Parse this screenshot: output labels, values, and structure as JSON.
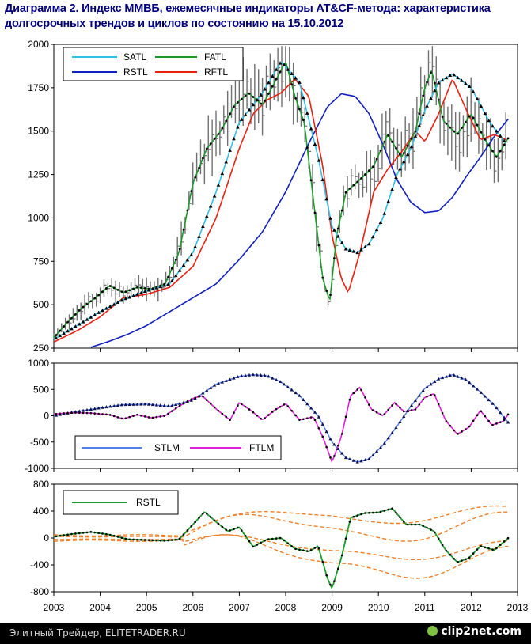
{
  "title": "Диаграмма 2. Индекс ММВБ, ежемесячные индикаторы AT&CF-метода: характеристика долгосрочных трендов и циклов по состоянию на 15.10.2012",
  "footer": {
    "source": "Элитный Трейдер, ELITETRADER.RU",
    "brand": "clip2net.com"
  },
  "colors": {
    "satl": "#30c0e8",
    "fatl": "#1a9a2a",
    "rstl": "#1020c0",
    "rftl": "#e82010",
    "stlm": "#5080e8",
    "ftlm": "#e020d8",
    "bands": "#f08028"
  },
  "chart_data": [
    {
      "type": "line",
      "x_ticks": [
        2003,
        2004,
        2005,
        2006,
        2007,
        2008,
        2009,
        2010,
        2011,
        2012,
        2013
      ],
      "ylim": [
        250,
        2000
      ],
      "y_ticks": [
        250,
        500,
        750,
        1000,
        1250,
        1500,
        1750,
        2000
      ],
      "legend": {
        "position": "top-left",
        "entries": [
          "SATL",
          "FATL",
          "RSTL",
          "RFTL"
        ]
      },
      "series": [
        {
          "name": "SATL",
          "x": [
            2003.0,
            2003.5,
            2004.0,
            2004.5,
            2005.0,
            2005.5,
            2006.0,
            2006.5,
            2007.0,
            2007.5,
            2007.9,
            2008.3,
            2008.7,
            2009.0,
            2009.3,
            2009.55,
            2009.8,
            2010.1,
            2010.4,
            2010.7,
            2011.0,
            2011.3,
            2011.6,
            2012.0,
            2012.4,
            2012.75
          ],
          "y": [
            300,
            380,
            460,
            530,
            580,
            620,
            800,
            1150,
            1550,
            1720,
            1900,
            1780,
            1350,
            950,
            820,
            800,
            850,
            1000,
            1250,
            1400,
            1620,
            1780,
            1830,
            1750,
            1550,
            1430
          ]
        },
        {
          "name": "FATL",
          "x": [
            2003.0,
            2003.3,
            2003.6,
            2003.9,
            2004.2,
            2004.5,
            2004.8,
            2005.1,
            2005.4,
            2005.7,
            2006.0,
            2006.3,
            2006.6,
            2006.9,
            2007.2,
            2007.5,
            2007.8,
            2008.0,
            2008.2,
            2008.4,
            2008.6,
            2008.8,
            2008.95,
            2009.1,
            2009.3,
            2009.6,
            2009.9,
            2010.2,
            2010.5,
            2010.8,
            2011.0,
            2011.15,
            2011.4,
            2011.7,
            2012.0,
            2012.3,
            2012.55,
            2012.8
          ],
          "y": [
            310,
            400,
            480,
            540,
            610,
            570,
            600,
            590,
            620,
            800,
            1200,
            1400,
            1500,
            1650,
            1720,
            1650,
            1800,
            1900,
            1700,
            1550,
            1100,
            650,
            520,
            900,
            1150,
            1220,
            1300,
            1480,
            1350,
            1500,
            1750,
            1850,
            1560,
            1480,
            1600,
            1450,
            1350,
            1460
          ]
        },
        {
          "name": "RSTL",
          "x": [
            2003.8,
            2004.2,
            2004.6,
            2005.0,
            2005.5,
            2006.0,
            2006.5,
            2007.0,
            2007.5,
            2008.0,
            2008.5,
            2008.9,
            2009.2,
            2009.5,
            2009.8,
            2010.1,
            2010.4,
            2010.7,
            2011.0,
            2011.3,
            2011.6,
            2011.9,
            2012.2,
            2012.5,
            2012.8
          ],
          "y": [
            255,
            290,
            330,
            380,
            460,
            540,
            620,
            760,
            920,
            1150,
            1430,
            1640,
            1715,
            1700,
            1600,
            1420,
            1220,
            1090,
            1030,
            1040,
            1120,
            1240,
            1350,
            1470,
            1570
          ]
        },
        {
          "name": "RFTL",
          "x": [
            2003.0,
            2003.5,
            2004.0,
            2004.5,
            2005.0,
            2005.5,
            2006.0,
            2006.5,
            2007.0,
            2007.3,
            2007.6,
            2007.9,
            2008.2,
            2008.5,
            2008.8,
            2009.0,
            2009.2,
            2009.35,
            2009.6,
            2009.9,
            2010.2,
            2010.5,
            2010.8,
            2011.0,
            2011.3,
            2011.6,
            2011.9,
            2012.2,
            2012.5,
            2012.75
          ],
          "y": [
            285,
            350,
            430,
            540,
            560,
            600,
            720,
            1000,
            1400,
            1600,
            1680,
            1720,
            1800,
            1700,
            1300,
            900,
            650,
            570,
            800,
            1150,
            1280,
            1380,
            1500,
            1440,
            1600,
            1800,
            1620,
            1450,
            1480,
            1450
          ]
        }
      ]
    },
    {
      "type": "line",
      "ylim": [
        -1000,
        1000
      ],
      "y_ticks": [
        -1000,
        -500,
        0,
        500,
        1000
      ],
      "legend": {
        "position": "bottom-left",
        "entries": [
          "STLM",
          "FTLM"
        ]
      },
      "series": [
        {
          "name": "STLM",
          "x": [
            2003.0,
            2003.5,
            2004.0,
            2004.5,
            2005.0,
            2005.5,
            2006.0,
            2006.5,
            2007.0,
            2007.3,
            2007.6,
            2007.9,
            2008.3,
            2008.7,
            2009.0,
            2009.3,
            2009.55,
            2009.8,
            2010.1,
            2010.4,
            2010.7,
            2011.0,
            2011.3,
            2011.6,
            2011.9,
            2012.2,
            2012.5,
            2012.8
          ],
          "y": [
            0,
            80,
            150,
            210,
            220,
            180,
            300,
            600,
            750,
            780,
            760,
            640,
            380,
            0,
            -500,
            -800,
            -880,
            -820,
            -560,
            -200,
            180,
            520,
            700,
            780,
            680,
            450,
            200,
            -130
          ]
        },
        {
          "name": "FTLM",
          "x": [
            2003.0,
            2003.4,
            2003.8,
            2004.2,
            2004.5,
            2004.8,
            2005.1,
            2005.4,
            2005.7,
            2006.0,
            2006.2,
            2006.5,
            2006.8,
            2007.0,
            2007.25,
            2007.5,
            2007.75,
            2008.0,
            2008.3,
            2008.6,
            2008.8,
            2009.0,
            2009.2,
            2009.4,
            2009.6,
            2009.85,
            2010.1,
            2010.35,
            2010.55,
            2010.8,
            2011.0,
            2011.2,
            2011.45,
            2011.7,
            2011.95,
            2012.2,
            2012.45,
            2012.7,
            2012.8
          ],
          "y": [
            30,
            60,
            50,
            20,
            -60,
            20,
            -40,
            0,
            180,
            330,
            380,
            130,
            -80,
            250,
            100,
            -80,
            100,
            230,
            -80,
            -20,
            -400,
            -880,
            -400,
            380,
            540,
            120,
            0,
            250,
            80,
            120,
            350,
            420,
            -90,
            -350,
            -220,
            100,
            -180,
            -100,
            30
          ]
        }
      ]
    },
    {
      "type": "line",
      "ylim": [
        -800,
        800
      ],
      "y_ticks": [
        -800,
        -400,
        0,
        400,
        800
      ],
      "legend": {
        "position": "top-left",
        "entries": [
          "RSTL"
        ]
      },
      "series": [
        {
          "name": "RSTL",
          "x": [
            2003.0,
            2003.4,
            2003.8,
            2004.2,
            2004.6,
            2005.0,
            2005.4,
            2005.7,
            2006.0,
            2006.25,
            2006.5,
            2006.75,
            2007.0,
            2007.3,
            2007.6,
            2007.9,
            2008.2,
            2008.5,
            2008.7,
            2008.9,
            2009.0,
            2009.2,
            2009.4,
            2009.7,
            2010.0,
            2010.3,
            2010.6,
            2010.9,
            2011.2,
            2011.45,
            2011.7,
            2011.95,
            2012.2,
            2012.5,
            2012.8
          ],
          "y": [
            20,
            60,
            90,
            50,
            -20,
            -30,
            -40,
            -20,
            200,
            390,
            240,
            100,
            160,
            -130,
            -20,
            0,
            -160,
            -200,
            -120,
            -600,
            -750,
            -300,
            300,
            370,
            380,
            440,
            200,
            200,
            100,
            -180,
            -360,
            -300,
            -120,
            -180,
            0
          ]
        }
      ]
    }
  ]
}
